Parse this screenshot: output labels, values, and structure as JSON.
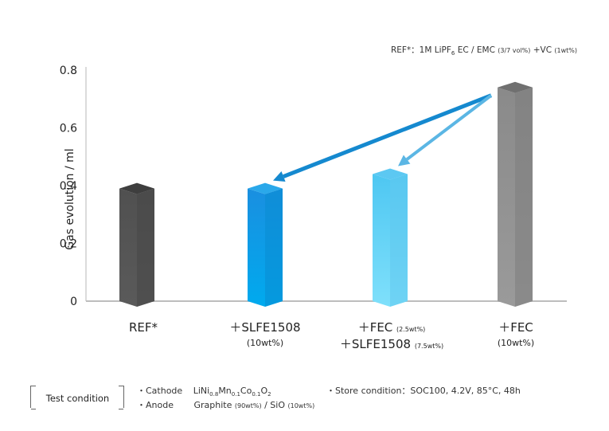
{
  "note": {
    "prefix": "REF*：1M LiPF",
    "sub": "6",
    "mid": " EC / EMC ",
    "small1": "(3/7 vol%)",
    "tail": " +VC ",
    "small2": "(1wt%)"
  },
  "chart_data": {
    "type": "bar",
    "ylabel": "Gas evolution / ml",
    "ylim": [
      0,
      0.8
    ],
    "yticks": [
      "0",
      "0.2",
      "0.4",
      "0.6",
      "0.8"
    ],
    "categories": [
      {
        "line1": "REF*",
        "line1_small": "",
        "line2": "",
        "line2_small": ""
      },
      {
        "line1": "＋SLFE1508",
        "line1_small": "",
        "line2": "(10wt%)",
        "line2_small": ""
      },
      {
        "line1": "＋FEC ",
        "line1_small": "(2.5wt%)",
        "line2": "＋SLFE1508 ",
        "line2_small": "(7.5wt%)"
      },
      {
        "line1": "＋FEC",
        "line1_small": "",
        "line2": "(10wt%)",
        "line2_small": ""
      }
    ],
    "values": [
      0.39,
      0.39,
      0.44,
      0.74
    ],
    "colors": {
      "front": [
        "#555555",
        "#0b9be6",
        "#6fd4f7",
        "#8e8e8e"
      ],
      "top": [
        "#3e3e3e",
        "#2aa8ea",
        "#5cc8f2",
        "#707070"
      ],
      "side": [
        "#474747",
        "#0a8dd2",
        "#62c9ef",
        "#7d7d7d"
      ]
    },
    "arrows": [
      {
        "from": 3,
        "to": 1,
        "color": "#1589cf"
      },
      {
        "from": 3,
        "to": 2,
        "color": "#5bb6e4"
      }
    ]
  },
  "conditions": {
    "title": "Test condition",
    "cathode_label": "・Cathode",
    "cathode_value": "LiNi0.8Mn0.1Co0.1O2",
    "anode_label": "・Anode",
    "anode_value": "Graphite",
    "anode_small1": "(90wt%)",
    "anode_mid": " / SiO ",
    "anode_small2": "(10wt%)",
    "store": "・Store condition：SOC100, 4.2V, 85°C, 48h"
  }
}
